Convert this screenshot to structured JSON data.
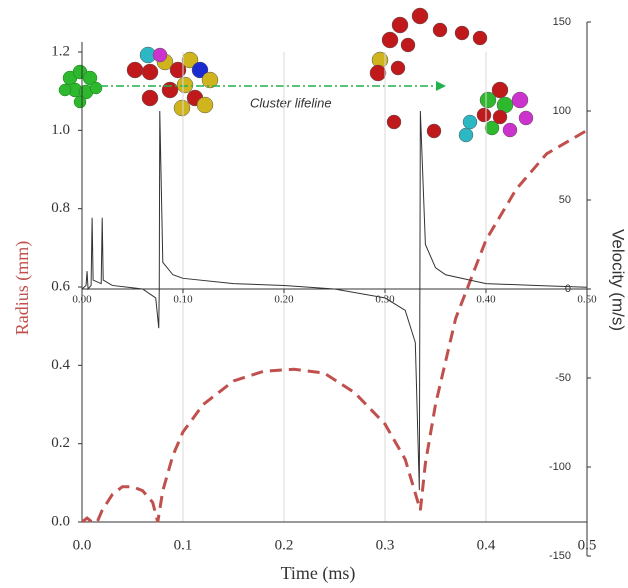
{
  "chart_data": {
    "type": "line",
    "annotation": "Cluster lifeline",
    "x_label": "Time (ms)",
    "y_label": "Radius (mm)",
    "y2_label": "Velocity (m/s)",
    "xlim": [
      0,
      0.5
    ],
    "ylim": [
      0,
      1.2
    ],
    "y2lim": [
      -150,
      150
    ],
    "xticks": [
      {
        "value": 0,
        "label": "0.0"
      },
      0.1,
      0.2,
      0.3,
      0.4,
      0.5
    ],
    "x2ticks": [
      {
        "value": 0,
        "label": "0.00"
      },
      {
        "value": 0.1,
        "label": "0.10"
      },
      {
        "value": 0.2,
        "label": "0.20"
      },
      {
        "value": 0.3,
        "label": "0.30"
      },
      {
        "value": 0.4,
        "label": "0.40"
      },
      {
        "value": 0.5,
        "label": "0.50"
      }
    ],
    "yticks": [
      {
        "value": 0,
        "label": "0.0"
      },
      0.2,
      0.4,
      0.6,
      0.8,
      {
        "value": 1,
        "label": "1.0"
      },
      1.2
    ],
    "y2ticks": [
      150,
      100,
      50,
      0,
      -50,
      -100,
      -150
    ],
    "grid": true,
    "series": [
      {
        "color": "#c0504d",
        "linestyle": "dashed",
        "axis": "y",
        "x": [
          0,
          0.005,
          0.01,
          0.015,
          0.02,
          0.03,
          0.04,
          0.05,
          0.06,
          0.07,
          0.075,
          0.08,
          0.09,
          0.1,
          0.12,
          0.15,
          0.18,
          0.21,
          0.24,
          0.27,
          0.3,
          0.32,
          0.335,
          0.34,
          0.35,
          0.37,
          0.4,
          0.43,
          0.46,
          0.5
        ],
        "values": [
          0.0,
          0.01,
          0.0,
          0.0,
          0.03,
          0.07,
          0.09,
          0.09,
          0.08,
          0.05,
          0.0,
          0.08,
          0.17,
          0.23,
          0.3,
          0.36,
          0.385,
          0.39,
          0.38,
          0.33,
          0.25,
          0.16,
          0.03,
          0.15,
          0.3,
          0.52,
          0.72,
          0.85,
          0.94,
          1.0
        ]
      },
      {
        "color": "#333333",
        "linestyle": "solid",
        "axis": "y2",
        "x": [
          0,
          0.004,
          0.005,
          0.006,
          0.009,
          0.01,
          0.011,
          0.019,
          0.02,
          0.021,
          0.03,
          0.06,
          0.073,
          0.076,
          0.0765,
          0.077,
          0.08,
          0.09,
          0.1,
          0.15,
          0.2,
          0.25,
          0.3,
          0.32,
          0.33,
          0.334,
          0.335,
          0.34,
          0.35,
          0.36,
          0.4,
          0.45,
          0.5
        ],
        "values": [
          0,
          2,
          10,
          0,
          2,
          40,
          5,
          3,
          40,
          5,
          2,
          0,
          -5,
          -22,
          0,
          100,
          15,
          8,
          6,
          3,
          2,
          0,
          -5,
          -12,
          -30,
          -113,
          100,
          25,
          12,
          8,
          3,
          2,
          1
        ]
      }
    ]
  }
}
